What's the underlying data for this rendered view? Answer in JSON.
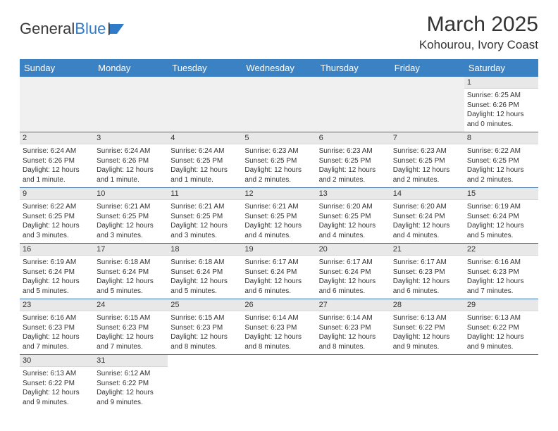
{
  "logo": {
    "text1": "General",
    "text2": "Blue"
  },
  "title": "March 2025",
  "location": "Kohourou, Ivory Coast",
  "colors": {
    "header_bg": "#3b82c4",
    "header_text": "#ffffff",
    "row_border": "#3b6fa8",
    "daynum_bg": "#e8e8e8",
    "logo_blue": "#2f7bc8"
  },
  "weekdays": [
    "Sunday",
    "Monday",
    "Tuesday",
    "Wednesday",
    "Thursday",
    "Friday",
    "Saturday"
  ],
  "weeks": [
    [
      null,
      null,
      null,
      null,
      null,
      null,
      {
        "n": "1",
        "sr": "Sunrise: 6:25 AM",
        "ss": "Sunset: 6:26 PM",
        "dl": "Daylight: 12 hours and 0 minutes."
      }
    ],
    [
      {
        "n": "2",
        "sr": "Sunrise: 6:24 AM",
        "ss": "Sunset: 6:26 PM",
        "dl": "Daylight: 12 hours and 1 minute."
      },
      {
        "n": "3",
        "sr": "Sunrise: 6:24 AM",
        "ss": "Sunset: 6:26 PM",
        "dl": "Daylight: 12 hours and 1 minute."
      },
      {
        "n": "4",
        "sr": "Sunrise: 6:24 AM",
        "ss": "Sunset: 6:25 PM",
        "dl": "Daylight: 12 hours and 1 minute."
      },
      {
        "n": "5",
        "sr": "Sunrise: 6:23 AM",
        "ss": "Sunset: 6:25 PM",
        "dl": "Daylight: 12 hours and 2 minutes."
      },
      {
        "n": "6",
        "sr": "Sunrise: 6:23 AM",
        "ss": "Sunset: 6:25 PM",
        "dl": "Daylight: 12 hours and 2 minutes."
      },
      {
        "n": "7",
        "sr": "Sunrise: 6:23 AM",
        "ss": "Sunset: 6:25 PM",
        "dl": "Daylight: 12 hours and 2 minutes."
      },
      {
        "n": "8",
        "sr": "Sunrise: 6:22 AM",
        "ss": "Sunset: 6:25 PM",
        "dl": "Daylight: 12 hours and 2 minutes."
      }
    ],
    [
      {
        "n": "9",
        "sr": "Sunrise: 6:22 AM",
        "ss": "Sunset: 6:25 PM",
        "dl": "Daylight: 12 hours and 3 minutes."
      },
      {
        "n": "10",
        "sr": "Sunrise: 6:21 AM",
        "ss": "Sunset: 6:25 PM",
        "dl": "Daylight: 12 hours and 3 minutes."
      },
      {
        "n": "11",
        "sr": "Sunrise: 6:21 AM",
        "ss": "Sunset: 6:25 PM",
        "dl": "Daylight: 12 hours and 3 minutes."
      },
      {
        "n": "12",
        "sr": "Sunrise: 6:21 AM",
        "ss": "Sunset: 6:25 PM",
        "dl": "Daylight: 12 hours and 4 minutes."
      },
      {
        "n": "13",
        "sr": "Sunrise: 6:20 AM",
        "ss": "Sunset: 6:25 PM",
        "dl": "Daylight: 12 hours and 4 minutes."
      },
      {
        "n": "14",
        "sr": "Sunrise: 6:20 AM",
        "ss": "Sunset: 6:24 PM",
        "dl": "Daylight: 12 hours and 4 minutes."
      },
      {
        "n": "15",
        "sr": "Sunrise: 6:19 AM",
        "ss": "Sunset: 6:24 PM",
        "dl": "Daylight: 12 hours and 5 minutes."
      }
    ],
    [
      {
        "n": "16",
        "sr": "Sunrise: 6:19 AM",
        "ss": "Sunset: 6:24 PM",
        "dl": "Daylight: 12 hours and 5 minutes."
      },
      {
        "n": "17",
        "sr": "Sunrise: 6:18 AM",
        "ss": "Sunset: 6:24 PM",
        "dl": "Daylight: 12 hours and 5 minutes."
      },
      {
        "n": "18",
        "sr": "Sunrise: 6:18 AM",
        "ss": "Sunset: 6:24 PM",
        "dl": "Daylight: 12 hours and 5 minutes."
      },
      {
        "n": "19",
        "sr": "Sunrise: 6:17 AM",
        "ss": "Sunset: 6:24 PM",
        "dl": "Daylight: 12 hours and 6 minutes."
      },
      {
        "n": "20",
        "sr": "Sunrise: 6:17 AM",
        "ss": "Sunset: 6:24 PM",
        "dl": "Daylight: 12 hours and 6 minutes."
      },
      {
        "n": "21",
        "sr": "Sunrise: 6:17 AM",
        "ss": "Sunset: 6:23 PM",
        "dl": "Daylight: 12 hours and 6 minutes."
      },
      {
        "n": "22",
        "sr": "Sunrise: 6:16 AM",
        "ss": "Sunset: 6:23 PM",
        "dl": "Daylight: 12 hours and 7 minutes."
      }
    ],
    [
      {
        "n": "23",
        "sr": "Sunrise: 6:16 AM",
        "ss": "Sunset: 6:23 PM",
        "dl": "Daylight: 12 hours and 7 minutes."
      },
      {
        "n": "24",
        "sr": "Sunrise: 6:15 AM",
        "ss": "Sunset: 6:23 PM",
        "dl": "Daylight: 12 hours and 7 minutes."
      },
      {
        "n": "25",
        "sr": "Sunrise: 6:15 AM",
        "ss": "Sunset: 6:23 PM",
        "dl": "Daylight: 12 hours and 8 minutes."
      },
      {
        "n": "26",
        "sr": "Sunrise: 6:14 AM",
        "ss": "Sunset: 6:23 PM",
        "dl": "Daylight: 12 hours and 8 minutes."
      },
      {
        "n": "27",
        "sr": "Sunrise: 6:14 AM",
        "ss": "Sunset: 6:23 PM",
        "dl": "Daylight: 12 hours and 8 minutes."
      },
      {
        "n": "28",
        "sr": "Sunrise: 6:13 AM",
        "ss": "Sunset: 6:22 PM",
        "dl": "Daylight: 12 hours and 9 minutes."
      },
      {
        "n": "29",
        "sr": "Sunrise: 6:13 AM",
        "ss": "Sunset: 6:22 PM",
        "dl": "Daylight: 12 hours and 9 minutes."
      }
    ],
    [
      {
        "n": "30",
        "sr": "Sunrise: 6:13 AM",
        "ss": "Sunset: 6:22 PM",
        "dl": "Daylight: 12 hours and 9 minutes."
      },
      {
        "n": "31",
        "sr": "Sunrise: 6:12 AM",
        "ss": "Sunset: 6:22 PM",
        "dl": "Daylight: 12 hours and 9 minutes."
      },
      null,
      null,
      null,
      null,
      null
    ]
  ]
}
